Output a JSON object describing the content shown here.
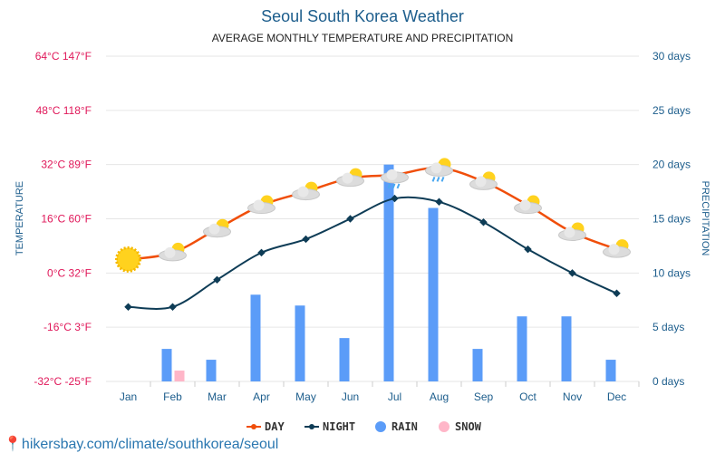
{
  "title": "Seoul South Korea Weather",
  "subtitle": "AVERAGE MONTHLY TEMPERATURE AND PRECIPITATION",
  "url": "hikersbay.com/climate/southkorea/seoul",
  "chart_data": {
    "type": "line",
    "categories": [
      "Jan",
      "Feb",
      "Mar",
      "Apr",
      "May",
      "Jun",
      "Jul",
      "Aug",
      "Sep",
      "Oct",
      "Nov",
      "Dec"
    ],
    "ylabel": "TEMPERATURE",
    "y2label": "PRECIPITATION",
    "ylim": [
      -32,
      64
    ],
    "y2lim": [
      0,
      30
    ],
    "left_ticks": [
      "64°C 147°F",
      "48°C 118°F",
      "32°C 89°F",
      "16°C 60°F",
      "0°C 32°F",
      "-16°C 3°F",
      "-32°C -25°F"
    ],
    "right_ticks": [
      "30 days",
      "25 days",
      "20 days",
      "15 days",
      "10 days",
      "5 days",
      "0 days"
    ],
    "series": [
      {
        "name": "DAY",
        "unit": "°C",
        "color": "#f04e0a",
        "values": [
          4,
          6,
          13,
          20,
          24,
          28,
          29,
          31,
          27,
          20,
          12,
          7
        ]
      },
      {
        "name": "NIGHT",
        "unit": "°C",
        "color": "#0e3c56",
        "values": [
          -10,
          -10,
          -2,
          6,
          10,
          16,
          22,
          21,
          15,
          7,
          0,
          -6
        ]
      },
      {
        "name": "RAIN",
        "unit": "days",
        "color": "#5b9cf8",
        "values": [
          0,
          3,
          2,
          8,
          7,
          4,
          20,
          16,
          3,
          6,
          6,
          2
        ]
      },
      {
        "name": "SNOW",
        "unit": "days",
        "color": "#ffb6c8",
        "values": [
          0,
          1,
          0,
          0,
          0,
          0,
          0,
          0,
          0,
          0,
          0,
          0
        ]
      }
    ],
    "weather_icons": [
      "sunny",
      "partly-cloudy",
      "partly-cloudy",
      "partly-cloudy",
      "partly-cloudy",
      "partly-cloudy",
      "rain-cloud",
      "partly-cloudy-rain",
      "partly-cloudy",
      "partly-cloudy",
      "partly-cloudy",
      "partly-cloudy"
    ]
  },
  "colors": {
    "left_axis": "#e0185a",
    "right_axis": "#1c5d8c"
  }
}
